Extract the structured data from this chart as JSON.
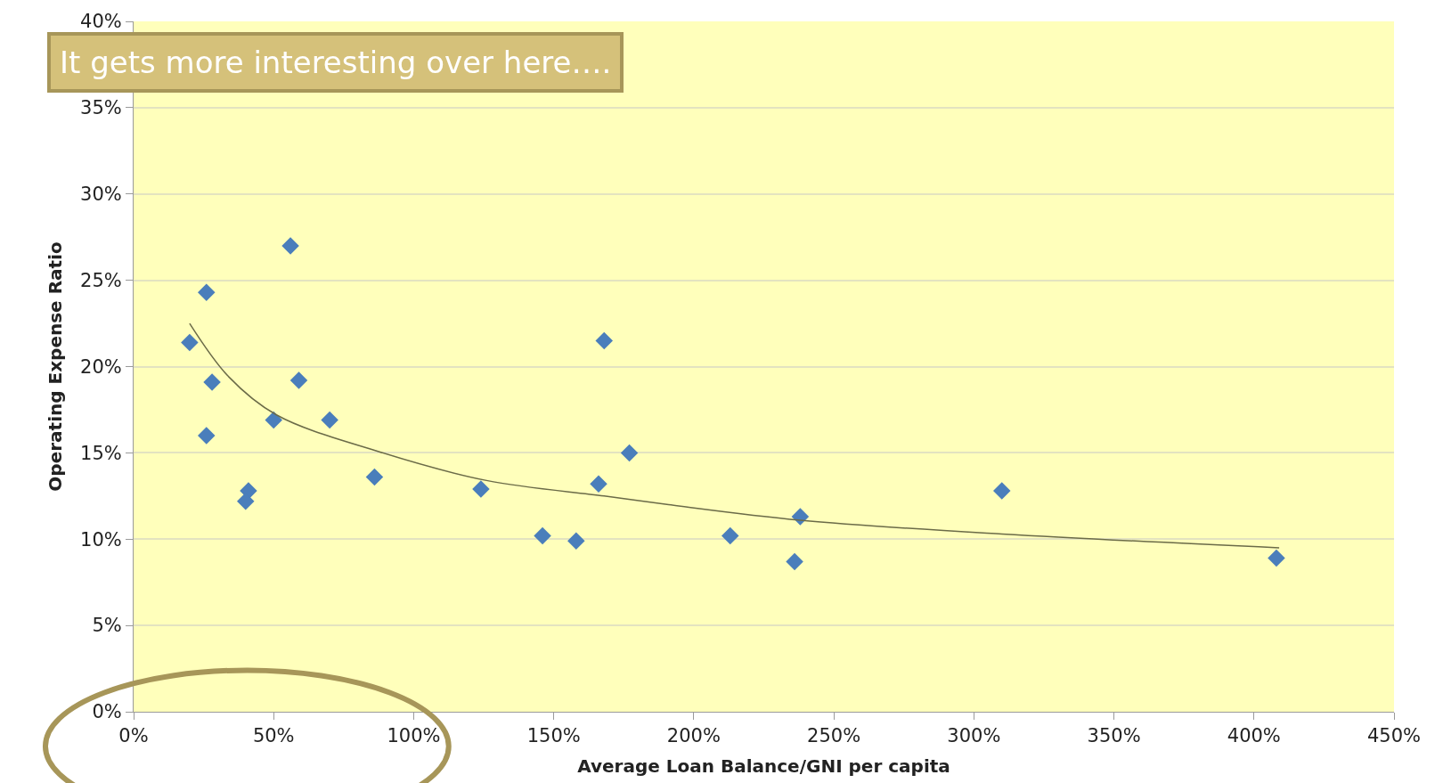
{
  "chart_data": {
    "type": "scatter",
    "xlabel": "Average Loan Balance/GNI per capita",
    "ylabel": "Operating Expense Ratio",
    "annotations": [
      "It gets more interesting over here…."
    ],
    "xlim": [
      0,
      450
    ],
    "xticks": [
      {
        "value": 0,
        "label": "0%"
      },
      {
        "value": 50,
        "label": "50%"
      },
      {
        "value": 100,
        "label": "100%"
      },
      {
        "value": 150,
        "label": "150%"
      },
      {
        "value": 200,
        "label": "200%"
      },
      {
        "value": 250,
        "label": "250%"
      },
      {
        "value": 300,
        "label": "300%"
      },
      {
        "value": 350,
        "label": "350%"
      },
      {
        "value": 400,
        "label": "400%"
      },
      {
        "value": 450,
        "label": "450%"
      }
    ],
    "ylim": [
      0,
      40
    ],
    "yticks": [
      {
        "value": 0,
        "label": "0%"
      },
      {
        "value": 5,
        "label": "5%"
      },
      {
        "value": 10,
        "label": "10%"
      },
      {
        "value": 15,
        "label": "15%"
      },
      {
        "value": 20,
        "label": "20%"
      },
      {
        "value": 25,
        "label": "25%"
      },
      {
        "value": 30,
        "label": "30%"
      },
      {
        "value": 35,
        "label": "35%"
      },
      {
        "value": 40,
        "label": "40%"
      }
    ],
    "grid": "y",
    "marker": "diamond",
    "series": [
      {
        "color": "#4a7ebb",
        "x": [
          20,
          26,
          28,
          26,
          56,
          59,
          50,
          70,
          41,
          40,
          86,
          124,
          146,
          158,
          166,
          168,
          177,
          213,
          236,
          238,
          310,
          408
        ],
        "values": [
          21.4,
          24.3,
          19.1,
          16.0,
          27.0,
          19.2,
          16.9,
          16.9,
          12.8,
          12.2,
          13.6,
          12.9,
          10.2,
          9.9,
          13.2,
          21.5,
          15.0,
          10.2,
          8.7,
          11.3,
          12.8,
          8.9
        ]
      },
      {
        "type": "line",
        "color": "#6b6b48",
        "marker": "none",
        "x": [
          20,
          34,
          51,
          87,
          126,
          168,
          191,
          238,
          310,
          409
        ],
        "values": [
          22.5,
          19.4,
          17.2,
          15.1,
          13.4,
          12.5,
          12.0,
          11.1,
          10.3,
          9.5
        ]
      }
    ]
  }
}
